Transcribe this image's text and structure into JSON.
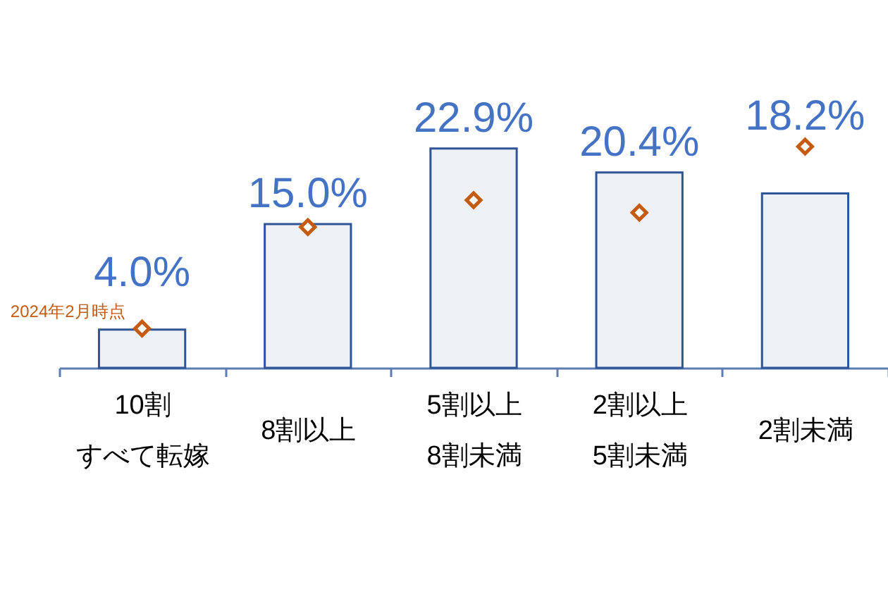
{
  "chart_data": {
    "type": "bar",
    "categories": [
      "10割すべて転嫁",
      "8割以上",
      "5割以上8割未満",
      "2割以上5割未満",
      "2割未満"
    ],
    "series": [
      {
        "color": "#edf1f5",
        "values": [
          4.0,
          15.0,
          22.9,
          20.4,
          18.2
        ],
        "value_labels": [
          "4.0%",
          "15.0%",
          "22.9%",
          "20.4%",
          "18.2%"
        ]
      },
      {
        "type": "scatter",
        "name": "2024年2月時点",
        "color": "#c55a11",
        "marker": "diamond",
        "values": [
          4.1,
          14.7,
          17.5,
          16.2,
          23.1
        ]
      }
    ]
  }
}
